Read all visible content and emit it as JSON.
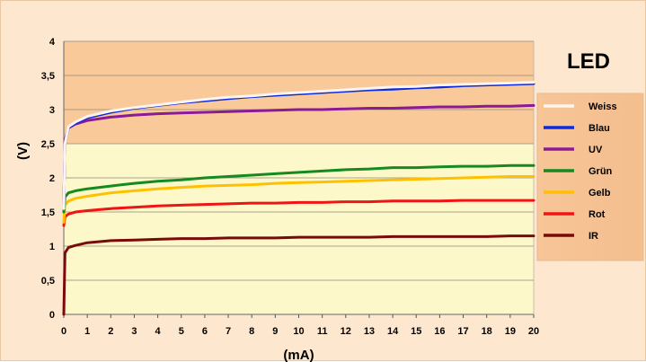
{
  "chart_data": {
    "type": "line",
    "title": "LED",
    "xlabel": "(mA)",
    "ylabel": "(V)",
    "xlim": [
      0,
      20
    ],
    "ylim": [
      0,
      4
    ],
    "x_ticks": [
      "0",
      "1",
      "2",
      "3",
      "4",
      "5",
      "6",
      "7",
      "8",
      "9",
      "10",
      "11",
      "12",
      "13",
      "14",
      "15",
      "16",
      "17",
      "18",
      "19",
      "20"
    ],
    "y_ticks": [
      "0",
      "0,5",
      "1",
      "1,5",
      "2",
      "2,5",
      "3",
      "3,5",
      "4"
    ],
    "grid": "horizontal",
    "legend_position": "right",
    "background_upper": "#f9c99a",
    "background_lower": "#fdf8c9",
    "x": [
      0,
      0.05,
      0.2,
      0.5,
      1,
      2,
      3,
      4,
      5,
      6,
      7,
      8,
      9,
      10,
      11,
      12,
      13,
      14,
      15,
      16,
      17,
      18,
      19,
      20
    ],
    "series": [
      {
        "name": "Weiss",
        "color": "#fff4ee",
        "values": [
          1.55,
          2.5,
          2.75,
          2.82,
          2.9,
          2.98,
          3.03,
          3.07,
          3.11,
          3.15,
          3.18,
          3.2,
          3.23,
          3.25,
          3.27,
          3.29,
          3.31,
          3.33,
          3.34,
          3.36,
          3.37,
          3.38,
          3.39,
          3.4
        ]
      },
      {
        "name": "Blau",
        "color": "#0a2be0",
        "values": [
          1.55,
          2.5,
          2.74,
          2.8,
          2.88,
          2.96,
          3.02,
          3.06,
          3.1,
          3.13,
          3.16,
          3.19,
          3.21,
          3.23,
          3.25,
          3.27,
          3.29,
          3.3,
          3.32,
          3.33,
          3.35,
          3.36,
          3.37,
          3.38
        ]
      },
      {
        "name": "UV",
        "color": "#8b1a96",
        "values": [
          1.6,
          2.55,
          2.73,
          2.79,
          2.84,
          2.89,
          2.92,
          2.94,
          2.95,
          2.96,
          2.97,
          2.98,
          2.99,
          3.0,
          3.0,
          3.01,
          3.02,
          3.02,
          3.03,
          3.04,
          3.04,
          3.05,
          3.05,
          3.06
        ]
      },
      {
        "name": "Grün",
        "color": "#158a20",
        "values": [
          1.5,
          1.72,
          1.78,
          1.81,
          1.84,
          1.88,
          1.92,
          1.95,
          1.97,
          2.0,
          2.02,
          2.04,
          2.06,
          2.08,
          2.1,
          2.12,
          2.13,
          2.15,
          2.15,
          2.16,
          2.17,
          2.17,
          2.18,
          2.18
        ]
      },
      {
        "name": "Gelb",
        "color": "#ffc000",
        "values": [
          1.35,
          1.6,
          1.66,
          1.7,
          1.73,
          1.78,
          1.81,
          1.84,
          1.86,
          1.88,
          1.89,
          1.9,
          1.92,
          1.93,
          1.94,
          1.95,
          1.96,
          1.97,
          1.98,
          1.99,
          2.0,
          2.01,
          2.02,
          2.02
        ]
      },
      {
        "name": "Rot",
        "color": "#f01414",
        "values": [
          1.3,
          1.43,
          1.47,
          1.5,
          1.52,
          1.55,
          1.57,
          1.59,
          1.6,
          1.61,
          1.62,
          1.63,
          1.63,
          1.64,
          1.64,
          1.65,
          1.65,
          1.66,
          1.66,
          1.66,
          1.67,
          1.67,
          1.67,
          1.67
        ]
      },
      {
        "name": "IR",
        "color": "#7a0a0a",
        "values": [
          0.0,
          0.9,
          0.98,
          1.01,
          1.05,
          1.08,
          1.09,
          1.1,
          1.11,
          1.11,
          1.12,
          1.12,
          1.12,
          1.13,
          1.13,
          1.13,
          1.13,
          1.14,
          1.14,
          1.14,
          1.14,
          1.14,
          1.15,
          1.15
        ]
      }
    ]
  }
}
